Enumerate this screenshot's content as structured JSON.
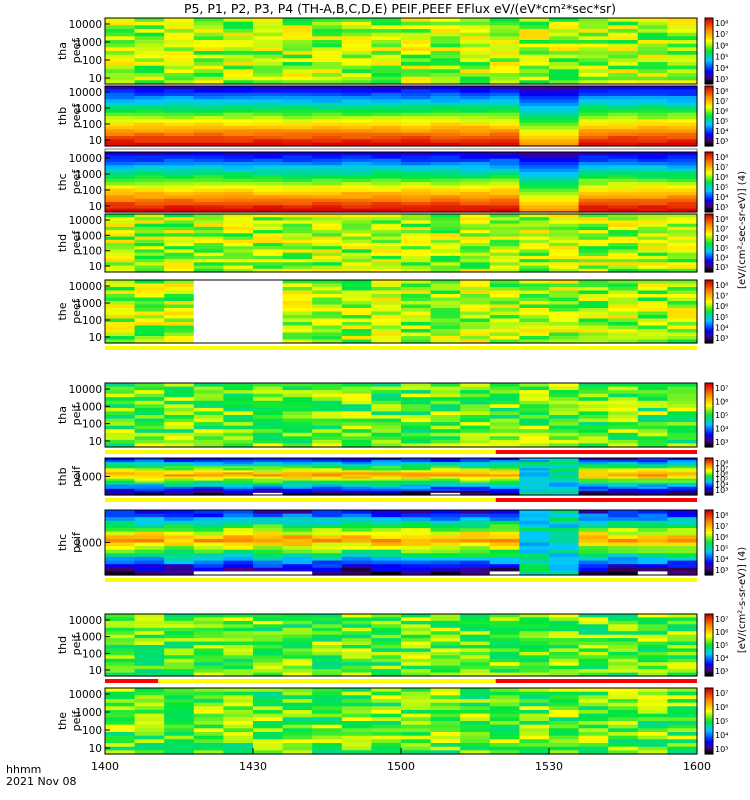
{
  "title": "P5, P1, P2, P3, P4 (TH-A,B,C,D,E) PEIF,PEEF EFlux eV/(eV*cm²*sec*sr)",
  "time_label": "hhmm",
  "date_label": "2021 Nov 08",
  "x_ticks": [
    "1400",
    "1430",
    "1500",
    "1530",
    "1600"
  ],
  "colorbar_label_peef": "[eV/(cm²-sec-sr-eV)] (4)",
  "colorbar_label_peif": "[eV/(cm²-s-sr-eV)] (4)",
  "chart_data": {
    "type": "heatmap",
    "x_range": [
      "1400",
      "1600"
    ],
    "colormap": "rainbow",
    "panels": [
      {
        "id": "thapeef",
        "ylabel": [
          "tha",
          "peef"
        ],
        "y_ticks": [
          "10000",
          "1000",
          "100",
          "10"
        ],
        "cbar_ticks": [
          "10⁸",
          "10⁷",
          "10⁶",
          "10⁵",
          "10⁴",
          "10³"
        ],
        "flag_bar": "none"
      },
      {
        "id": "thbpeef",
        "ylabel": [
          "thb",
          "peef"
        ],
        "y_ticks": [
          "10000",
          "1000",
          "100",
          "10"
        ],
        "cbar_ticks": [
          "10⁸",
          "10⁷",
          "10⁶",
          "10⁵",
          "10⁴",
          "10³"
        ],
        "flag_bar": "white"
      },
      {
        "id": "thcpeef",
        "ylabel": [
          "thc",
          "peef"
        ],
        "y_ticks": [
          "10000",
          "1000",
          "100",
          "10"
        ],
        "cbar_ticks": [
          "10⁸",
          "10⁷",
          "10⁶",
          "10⁵",
          "10⁴",
          "10³"
        ],
        "flag_bar": "white"
      },
      {
        "id": "thdpeef",
        "ylabel": [
          "thd",
          "peef"
        ],
        "y_ticks": [
          "10000",
          "1000",
          "100",
          "10"
        ],
        "cbar_ticks": [
          "10⁸",
          "10⁷",
          "10⁶",
          "10⁵",
          "10⁴",
          "10³"
        ],
        "flag_bar": "none"
      },
      {
        "id": "thepeef",
        "ylabel": [
          "the",
          "peef"
        ],
        "y_ticks": [
          "10000",
          "1000",
          "100",
          "10"
        ],
        "cbar_ticks": [
          "10⁸",
          "10⁷",
          "10⁶",
          "10⁵",
          "10⁴",
          "10³"
        ],
        "flag_bar": "yellow"
      },
      {
        "id": "thapeif",
        "ylabel": [
          "tha",
          "peif"
        ],
        "y_ticks": [
          "10000",
          "1000",
          "100",
          "10"
        ],
        "cbar_ticks": [
          "10⁷",
          "10⁶",
          "10⁵",
          "10⁴",
          "10³"
        ],
        "flag_bar": "yellow-red"
      },
      {
        "id": "thbpeif",
        "ylabel": [
          "thb",
          "peif"
        ],
        "y_ticks": [
          "1000"
        ],
        "cbar_ticks": [
          "10⁸",
          "10⁷",
          "10⁶",
          "10⁵",
          "10⁴",
          "10³"
        ],
        "flag_bar": "yellow-red"
      },
      {
        "id": "thcpeif",
        "ylabel": [
          "thc",
          "peif"
        ],
        "y_ticks": [
          "1000"
        ],
        "cbar_ticks": [
          "10⁸",
          "10⁷",
          "10⁶",
          "10⁵",
          "10⁴",
          "10³"
        ],
        "flag_bar": "yellow"
      },
      {
        "id": "thdpeif",
        "ylabel": [
          "thd",
          "peif"
        ],
        "y_ticks": [
          "10000",
          "1000",
          "100",
          "10"
        ],
        "cbar_ticks": [
          "10⁷",
          "10⁶",
          "10⁵",
          "10⁴",
          "10³"
        ],
        "flag_bar": "red-yellow-red"
      },
      {
        "id": "thepeif",
        "ylabel": [
          "the",
          "peif"
        ],
        "y_ticks": [
          "10000",
          "1000",
          "100",
          "10"
        ],
        "cbar_ticks": [
          "10⁷",
          "10⁶",
          "10⁵",
          "10⁴",
          "10³"
        ],
        "flag_bar": "none"
      }
    ]
  }
}
